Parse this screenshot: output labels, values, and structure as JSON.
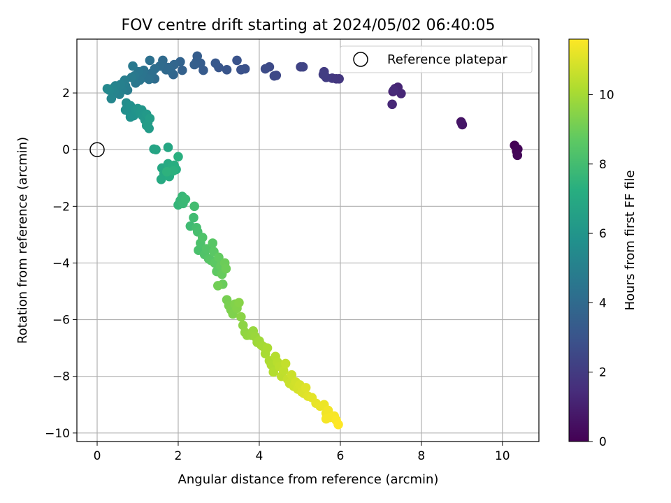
{
  "chart_data": {
    "type": "scatter",
    "title": "FOV centre drift starting at 2024/05/02 06:40:05",
    "xlabel": "Angular distance from reference (arcmin)",
    "ylabel": "Rotation from reference (arcmin)",
    "xlim": [
      -0.5,
      10.9
    ],
    "ylim": [
      -10.3,
      3.9
    ],
    "xticks": [
      0,
      2,
      4,
      6,
      8,
      10
    ],
    "yticks": [
      -10,
      -8,
      -6,
      -4,
      -2,
      0,
      2
    ],
    "xtick_labels": [
      "0",
      "2",
      "4",
      "6",
      "8",
      "10"
    ],
    "ytick_labels": [
      "−10",
      "−8",
      "−6",
      "−4",
      "−2",
      "0",
      "2"
    ],
    "grid": true,
    "legend": {
      "position": "top-right",
      "entries": [
        "Reference platepar"
      ]
    },
    "reference": {
      "label": "Reference platepar",
      "x": 0,
      "y": 0,
      "marker": "open-circle"
    },
    "colorbar": {
      "label": "Hours from first FF file",
      "colormap": "viridis",
      "range": [
        0,
        11.6
      ],
      "ticks": [
        0,
        2,
        4,
        6,
        8,
        10
      ],
      "tick_labels": [
        "0",
        "2",
        "4",
        "6",
        "8",
        "10"
      ]
    },
    "series": [
      {
        "colored_by": "Hours from first FF file",
        "points": [
          [
            10.3,
            0.15,
            0.0
          ],
          [
            10.35,
            -0.05,
            0.05
          ],
          [
            10.38,
            0.02,
            0.1
          ],
          [
            10.37,
            -0.2,
            0.15
          ],
          [
            8.98,
            0.98,
            0.6
          ],
          [
            9.01,
            0.88,
            0.65
          ],
          [
            9.0,
            0.92,
            0.7
          ],
          [
            7.3,
            2.05,
            1.1
          ],
          [
            7.35,
            2.15,
            1.15
          ],
          [
            7.42,
            2.2,
            1.2
          ],
          [
            7.5,
            1.98,
            1.25
          ],
          [
            7.28,
            1.6,
            1.3
          ],
          [
            7.32,
            2.1,
            1.35
          ],
          [
            5.9,
            2.5,
            1.8
          ],
          [
            5.97,
            2.5,
            1.85
          ],
          [
            5.8,
            2.52,
            1.9
          ],
          [
            5.6,
            2.75,
            2.0
          ],
          [
            5.65,
            2.55,
            2.05
          ],
          [
            5.58,
            2.65,
            2.1
          ],
          [
            5.02,
            2.92,
            2.3
          ],
          [
            5.08,
            2.92,
            2.35
          ],
          [
            4.42,
            2.62,
            2.5
          ],
          [
            4.37,
            2.6,
            2.55
          ],
          [
            4.25,
            2.92,
            2.6
          ],
          [
            4.15,
            2.85,
            2.65
          ],
          [
            3.65,
            2.85,
            2.85
          ],
          [
            3.55,
            2.82,
            2.9
          ],
          [
            3.45,
            3.15,
            2.95
          ],
          [
            3.2,
            2.82,
            3.05
          ],
          [
            3.0,
            2.9,
            3.1
          ],
          [
            2.92,
            3.05,
            3.15
          ],
          [
            2.62,
            2.8,
            3.3
          ],
          [
            2.55,
            3.05,
            3.35
          ],
          [
            2.47,
            3.3,
            3.4
          ],
          [
            2.45,
            3.1,
            3.45
          ],
          [
            2.4,
            3.0,
            3.5
          ],
          [
            2.1,
            2.8,
            3.6
          ],
          [
            2.05,
            3.1,
            3.65
          ],
          [
            1.88,
            2.65,
            3.75
          ],
          [
            1.9,
            3.0,
            3.8
          ],
          [
            1.82,
            2.78,
            3.85
          ],
          [
            1.75,
            2.9,
            3.9
          ],
          [
            1.7,
            2.82,
            3.95
          ],
          [
            1.62,
            3.15,
            4.0
          ],
          [
            1.55,
            2.95,
            4.05
          ],
          [
            1.42,
            2.5,
            4.1
          ],
          [
            1.42,
            2.85,
            4.15
          ],
          [
            1.35,
            2.7,
            4.2
          ],
          [
            1.3,
            3.15,
            4.25
          ],
          [
            1.28,
            2.48,
            4.3
          ],
          [
            1.2,
            2.55,
            4.35
          ],
          [
            1.15,
            2.8,
            4.4
          ],
          [
            1.1,
            2.65,
            4.45
          ],
          [
            1.05,
            2.45,
            4.5
          ],
          [
            1.02,
            2.75,
            4.55
          ],
          [
            0.95,
            2.35,
            4.6
          ],
          [
            0.92,
            2.6,
            4.65
          ],
          [
            0.88,
            2.95,
            4.7
          ],
          [
            0.85,
            2.55,
            4.75
          ],
          [
            0.75,
            2.1,
            4.8
          ],
          [
            0.7,
            2.25,
            4.85
          ],
          [
            0.68,
            2.45,
            4.9
          ],
          [
            0.62,
            2.1,
            4.95
          ],
          [
            0.58,
            2.3,
            5.0
          ],
          [
            0.55,
            1.95,
            5.05
          ],
          [
            0.5,
            2.0,
            5.1
          ],
          [
            0.45,
            2.25,
            5.15
          ],
          [
            0.42,
            2.05,
            5.2
          ],
          [
            0.38,
            2.15,
            5.25
          ],
          [
            0.35,
            1.8,
            5.3
          ],
          [
            0.3,
            2.1,
            5.35
          ],
          [
            0.25,
            2.15,
            5.4
          ],
          [
            0.72,
            1.65,
            5.6
          ],
          [
            0.7,
            1.4,
            5.65
          ],
          [
            0.78,
            1.35,
            5.7
          ],
          [
            0.82,
            1.55,
            5.75
          ],
          [
            0.82,
            1.15,
            5.8
          ],
          [
            0.9,
            1.2,
            5.85
          ],
          [
            0.95,
            1.38,
            5.9
          ],
          [
            1.0,
            1.45,
            5.95
          ],
          [
            1.05,
            1.3,
            6.0
          ],
          [
            1.1,
            1.4,
            6.05
          ],
          [
            1.12,
            1.2,
            6.1
          ],
          [
            1.18,
            1.05,
            6.15
          ],
          [
            1.22,
            1.25,
            6.2
          ],
          [
            1.25,
            0.95,
            6.25
          ],
          [
            1.28,
            0.75,
            6.3
          ],
          [
            1.22,
            0.85,
            6.35
          ],
          [
            1.3,
            1.1,
            6.4
          ],
          [
            1.4,
            0.02,
            6.7
          ],
          [
            1.45,
            0.0,
            6.75
          ],
          [
            1.75,
            0.08,
            6.85
          ],
          [
            1.6,
            -0.65,
            6.9
          ],
          [
            1.65,
            -0.85,
            6.95
          ],
          [
            1.58,
            -1.05,
            7.0
          ],
          [
            1.75,
            -0.5,
            7.05
          ],
          [
            1.78,
            -0.95,
            7.1
          ],
          [
            1.85,
            -0.6,
            7.15
          ],
          [
            1.9,
            -0.55,
            7.2
          ],
          [
            1.95,
            -0.7,
            7.25
          ],
          [
            2.0,
            -0.25,
            7.3
          ],
          [
            1.88,
            -0.75,
            7.35
          ],
          [
            1.72,
            -0.78,
            7.4
          ],
          [
            2.0,
            -1.95,
            7.6
          ],
          [
            2.05,
            -1.8,
            7.65
          ],
          [
            2.1,
            -1.65,
            7.7
          ],
          [
            2.12,
            -1.9,
            7.75
          ],
          [
            2.18,
            -1.75,
            7.8
          ],
          [
            2.3,
            -2.7,
            7.9
          ],
          [
            2.38,
            -2.4,
            7.95
          ],
          [
            2.4,
            -2.0,
            8.0
          ],
          [
            2.45,
            -2.75,
            8.05
          ],
          [
            2.48,
            -2.9,
            8.1
          ],
          [
            2.5,
            -3.55,
            8.2
          ],
          [
            2.55,
            -3.3,
            8.25
          ],
          [
            2.6,
            -3.1,
            8.3
          ],
          [
            2.65,
            -3.7,
            8.35
          ],
          [
            2.7,
            -3.5,
            8.4
          ],
          [
            2.75,
            -3.85,
            8.45
          ],
          [
            2.8,
            -3.9,
            8.5
          ],
          [
            2.85,
            -3.3,
            8.55
          ],
          [
            2.88,
            -3.6,
            8.6
          ],
          [
            2.9,
            -4.0,
            8.65
          ],
          [
            2.95,
            -4.3,
            8.7
          ],
          [
            3.0,
            -3.8,
            8.75
          ],
          [
            3.05,
            -4.1,
            8.8
          ],
          [
            3.08,
            -4.4,
            8.85
          ],
          [
            3.1,
            -4.75,
            8.9
          ],
          [
            3.15,
            -4.0,
            8.95
          ],
          [
            3.18,
            -4.2,
            9.0
          ],
          [
            2.98,
            -4.8,
            9.05
          ],
          [
            3.2,
            -5.3,
            9.15
          ],
          [
            3.25,
            -5.5,
            9.2
          ],
          [
            3.3,
            -5.65,
            9.25
          ],
          [
            3.35,
            -5.8,
            9.3
          ],
          [
            3.4,
            -5.45,
            9.35
          ],
          [
            3.45,
            -5.6,
            9.4
          ],
          [
            3.5,
            -5.4,
            9.45
          ],
          [
            3.55,
            -5.9,
            9.5
          ],
          [
            3.6,
            -6.2,
            9.55
          ],
          [
            3.65,
            -6.45,
            9.6
          ],
          [
            3.7,
            -6.55,
            9.65
          ],
          [
            3.8,
            -6.55,
            9.7
          ],
          [
            3.85,
            -6.4,
            9.75
          ],
          [
            3.9,
            -6.6,
            9.8
          ],
          [
            3.95,
            -6.8,
            9.85
          ],
          [
            4.0,
            -6.75,
            9.9
          ],
          [
            4.05,
            -6.9,
            9.95
          ],
          [
            4.1,
            -6.95,
            10.0
          ],
          [
            4.15,
            -7.2,
            10.05
          ],
          [
            4.2,
            -7.0,
            10.1
          ],
          [
            4.25,
            -7.45,
            10.15
          ],
          [
            4.3,
            -7.6,
            10.2
          ],
          [
            4.35,
            -7.85,
            10.25
          ],
          [
            4.4,
            -7.3,
            10.3
          ],
          [
            4.45,
            -7.5,
            10.35
          ],
          [
            4.5,
            -7.65,
            10.4
          ],
          [
            4.55,
            -8.0,
            10.45
          ],
          [
            4.6,
            -7.8,
            10.5
          ],
          [
            4.65,
            -7.55,
            10.55
          ],
          [
            4.7,
            -8.1,
            10.6
          ],
          [
            4.75,
            -8.25,
            10.65
          ],
          [
            4.8,
            -7.95,
            10.7
          ],
          [
            4.85,
            -8.35,
            10.75
          ],
          [
            4.9,
            -8.2,
            10.8
          ],
          [
            4.95,
            -8.45,
            10.85
          ],
          [
            5.0,
            -8.3,
            10.9
          ],
          [
            5.05,
            -8.55,
            10.95
          ],
          [
            5.1,
            -8.6,
            11.0
          ],
          [
            5.15,
            -8.4,
            11.05
          ],
          [
            5.2,
            -8.7,
            11.1
          ],
          [
            5.3,
            -8.75,
            11.15
          ],
          [
            5.4,
            -8.95,
            11.2
          ],
          [
            5.5,
            -9.05,
            11.25
          ],
          [
            5.6,
            -9.0,
            11.3
          ],
          [
            5.65,
            -9.3,
            11.35
          ],
          [
            5.7,
            -9.2,
            11.4
          ],
          [
            5.75,
            -9.45,
            11.45
          ],
          [
            5.85,
            -9.4,
            11.5
          ],
          [
            5.9,
            -9.55,
            11.55
          ],
          [
            5.95,
            -9.7,
            11.6
          ],
          [
            5.65,
            -9.5,
            11.45
          ]
        ]
      }
    ]
  }
}
